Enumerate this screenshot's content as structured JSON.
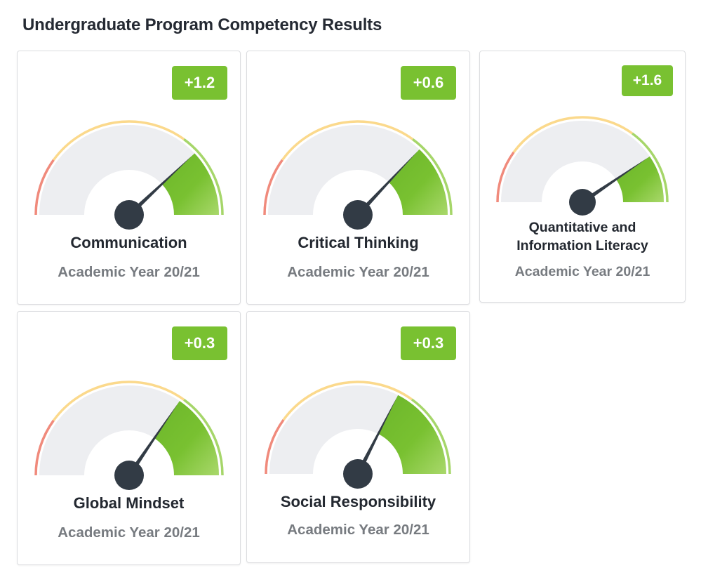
{
  "page": {
    "title": "Undergraduate Program Competency Results"
  },
  "colors": {
    "badge": "#79c131",
    "gauge_low": "#f08a7c",
    "gauge_mid": "#fbd98c",
    "gauge_high": "#a6d66a",
    "gauge_fill": "#79c131",
    "gauge_face": "#edeef1",
    "needle": "#323b45"
  },
  "cards": [
    {
      "name": "Communication",
      "year": "Academic Year 20/21",
      "change": "+1.2",
      "needle_fraction": 0.76
    },
    {
      "name": "Critical Thinking",
      "year": "Academic Year 20/21",
      "change": "+0.6",
      "needle_fraction": 0.74
    },
    {
      "name": "Quantitative and Information Literacy",
      "name_line1": "Quantitative and",
      "name_line2": "Information Literacy",
      "year": "Academic Year 20/21",
      "change": "+1.6",
      "needle_fraction": 0.81
    },
    {
      "name": "Global Mindset",
      "year": "Academic Year 20/21",
      "change": "+0.3",
      "needle_fraction": 0.69
    },
    {
      "name": "Social Responsibility",
      "year": "Academic Year 20/21",
      "change": "+0.3",
      "needle_fraction": 0.65
    }
  ]
}
